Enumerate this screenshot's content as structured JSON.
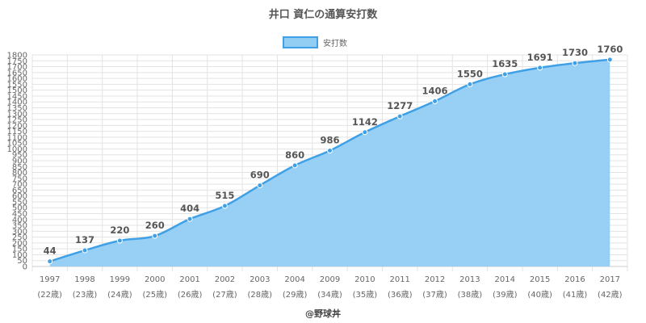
{
  "chart_data": {
    "type": "area",
    "title": "井口 資仁の通算安打数",
    "legend": {
      "position": "top-center",
      "entries": [
        "安打数"
      ]
    },
    "categories": [
      "1997",
      "1998",
      "1999",
      "2000",
      "2001",
      "2002",
      "2003",
      "2004",
      "2009",
      "2010",
      "2011",
      "2012",
      "2013",
      "2014",
      "2015",
      "2016",
      "2017"
    ],
    "category_sublabels": [
      "(22歳)",
      "(23歳)",
      "(24歳)",
      "(25歳)",
      "(26歳)",
      "(27歳)",
      "(28歳)",
      "(29歳)",
      "(34歳)",
      "(35歳)",
      "(36歳)",
      "(37歳)",
      "(38歳)",
      "(39歳)",
      "(40歳)",
      "(41歳)",
      "(42歳)"
    ],
    "series": [
      {
        "name": "安打数",
        "values": [
          44,
          137,
          220,
          260,
          404,
          515,
          690,
          860,
          986,
          1142,
          1277,
          1406,
          1550,
          1635,
          1691,
          1730,
          1760
        ]
      }
    ],
    "ylim": [
      0,
      1800
    ],
    "ytick_step": 50,
    "grid": true,
    "data_labels": true,
    "colors": {
      "line": "#3fa0e6",
      "fill": "#92cdf4",
      "grid": "#e3e3e3",
      "text": "#666666"
    }
  },
  "credit": "@野球丼"
}
